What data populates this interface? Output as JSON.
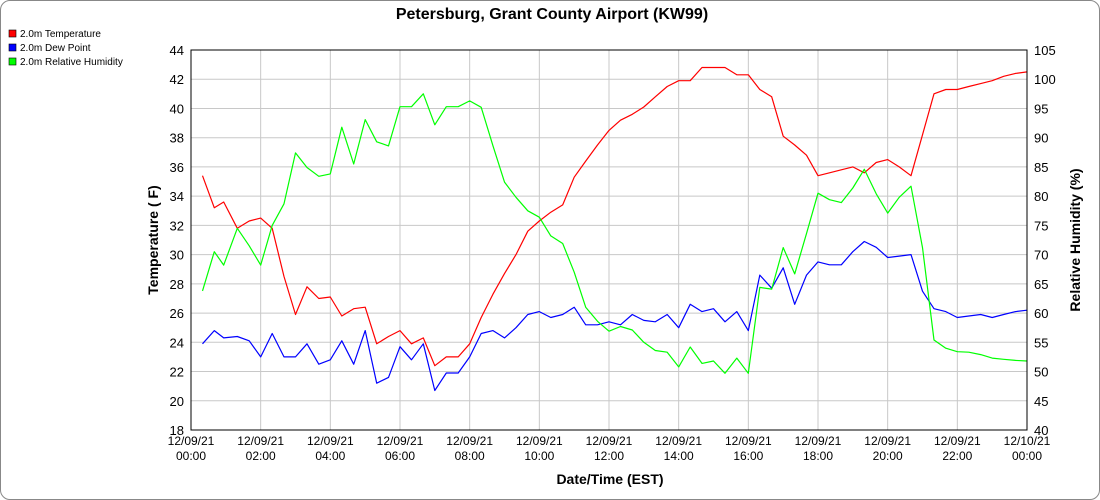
{
  "chart_data": {
    "type": "line",
    "title": "Petersburg, Grant County Airport (KW99)",
    "xlabel": "Date/Time (EST)",
    "ylabel_left": "Temperature ( F)",
    "ylabel_right": "Relative Humidity (%)",
    "ylim_left": [
      18,
      44
    ],
    "ylim_right": [
      40,
      105
    ],
    "left_ticks": [
      18,
      20,
      22,
      24,
      26,
      28,
      30,
      32,
      34,
      36,
      38,
      40,
      42,
      44
    ],
    "right_ticks": [
      40,
      45,
      50,
      55,
      60,
      65,
      70,
      75,
      80,
      85,
      90,
      95,
      100,
      105
    ],
    "x_hours": [
      0,
      24
    ],
    "x_ticks": [
      {
        "hour": 0,
        "line1": "12/09/21",
        "line2": "00:00"
      },
      {
        "hour": 2,
        "line1": "12/09/21",
        "line2": "02:00"
      },
      {
        "hour": 4,
        "line1": "12/09/21",
        "line2": "04:00"
      },
      {
        "hour": 6,
        "line1": "12/09/21",
        "line2": "06:00"
      },
      {
        "hour": 8,
        "line1": "12/09/21",
        "line2": "08:00"
      },
      {
        "hour": 10,
        "line1": "12/09/21",
        "line2": "10:00"
      },
      {
        "hour": 12,
        "line1": "12/09/21",
        "line2": "12:00"
      },
      {
        "hour": 14,
        "line1": "12/09/21",
        "line2": "14:00"
      },
      {
        "hour": 16,
        "line1": "12/09/21",
        "line2": "16:00"
      },
      {
        "hour": 18,
        "line1": "12/09/21",
        "line2": "18:00"
      },
      {
        "hour": 20,
        "line1": "12/09/21",
        "line2": "20:00"
      },
      {
        "hour": 22,
        "line1": "12/09/21",
        "line2": "22:00"
      },
      {
        "hour": 24,
        "line1": "12/10/21",
        "line2": "00:00"
      }
    ],
    "grid": true,
    "legend_position": "top-left",
    "series": [
      {
        "name": "2.0m Temperature",
        "color": "#ff0000",
        "axis": "left",
        "x": [
          0.33,
          0.67,
          0.94,
          1.33,
          1.67,
          2.0,
          2.33,
          2.67,
          3.0,
          3.33,
          3.67,
          4.0,
          4.33,
          4.67,
          5.0,
          5.33,
          5.67,
          6.0,
          6.33,
          6.67,
          7.0,
          7.33,
          7.67,
          8.0,
          8.33,
          8.67,
          9.0,
          9.33,
          9.67,
          10.0,
          10.33,
          10.67,
          11.0,
          11.33,
          11.67,
          12.0,
          12.33,
          12.67,
          13.0,
          13.33,
          13.67,
          14.0,
          14.33,
          14.67,
          15.0,
          15.33,
          15.67,
          16.0,
          16.33,
          16.67,
          17.0,
          17.33,
          17.67,
          18.0,
          18.33,
          18.67,
          19.0,
          19.33,
          19.67,
          20.0,
          20.33,
          20.67,
          21.0,
          21.33,
          21.67,
          22.0,
          22.33,
          22.67,
          23.0,
          23.33,
          23.67,
          24.0
        ],
        "y": [
          35.4,
          33.2,
          33.6,
          31.8,
          32.3,
          32.5,
          31.8,
          28.5,
          25.9,
          27.8,
          27.0,
          27.1,
          25.8,
          26.3,
          26.4,
          23.9,
          24.4,
          24.8,
          23.9,
          24.3,
          22.4,
          23.0,
          23.0,
          23.9,
          25.7,
          27.3,
          28.7,
          30.0,
          31.6,
          32.3,
          32.9,
          33.4,
          35.3,
          36.4,
          37.5,
          38.5,
          39.2,
          39.6,
          40.1,
          40.8,
          41.5,
          41.9,
          41.9,
          42.8,
          42.8,
          42.8,
          42.3,
          42.3,
          41.3,
          40.8,
          38.1,
          37.5,
          36.8,
          35.4,
          35.6,
          35.8,
          36.0,
          35.6,
          36.3,
          36.5,
          36.0,
          35.4,
          38.2,
          41.0,
          41.3,
          41.3,
          41.5,
          41.7,
          41.9,
          42.2,
          42.4,
          42.5
        ]
      },
      {
        "name": "2.0m Dew Point",
        "color": "#0000ff",
        "axis": "left",
        "x": [
          0.33,
          0.67,
          0.94,
          1.33,
          1.67,
          2.0,
          2.33,
          2.67,
          3.0,
          3.33,
          3.67,
          4.0,
          4.33,
          4.67,
          5.0,
          5.33,
          5.67,
          6.0,
          6.33,
          6.67,
          7.0,
          7.33,
          7.67,
          8.0,
          8.33,
          8.67,
          9.0,
          9.33,
          9.67,
          10.0,
          10.33,
          10.67,
          11.0,
          11.33,
          11.67,
          12.0,
          12.33,
          12.67,
          13.0,
          13.33,
          13.67,
          14.0,
          14.33,
          14.67,
          15.0,
          15.33,
          15.67,
          16.0,
          16.33,
          16.67,
          17.0,
          17.33,
          17.67,
          18.0,
          18.33,
          18.67,
          19.0,
          19.33,
          19.67,
          20.0,
          20.33,
          20.67,
          21.0,
          21.33,
          21.67,
          22.0,
          22.33,
          22.67,
          23.0,
          23.33,
          23.67,
          24.0
        ],
        "y": [
          23.9,
          24.8,
          24.3,
          24.4,
          24.1,
          23.0,
          24.6,
          23.0,
          23.0,
          23.9,
          22.5,
          22.8,
          24.1,
          22.5,
          24.8,
          21.2,
          21.6,
          23.7,
          22.8,
          23.9,
          20.7,
          21.9,
          21.9,
          23.0,
          24.6,
          24.8,
          24.3,
          25.0,
          25.9,
          26.1,
          25.7,
          25.9,
          26.4,
          25.2,
          25.2,
          25.4,
          25.2,
          25.9,
          25.5,
          25.4,
          25.9,
          25.0,
          26.6,
          26.1,
          26.3,
          25.4,
          26.1,
          24.8,
          28.6,
          27.7,
          29.1,
          26.6,
          28.6,
          29.5,
          29.3,
          29.3,
          30.2,
          30.9,
          30.5,
          29.8,
          29.9,
          30.0,
          27.5,
          26.3,
          26.1,
          25.7,
          25.8,
          25.9,
          25.7,
          25.9,
          26.1,
          26.2
        ]
      },
      {
        "name": "2.0m Relative Humidity",
        "color": "#00ff00",
        "axis": "right",
        "x": [
          0.33,
          0.67,
          0.94,
          1.33,
          1.67,
          2.0,
          2.33,
          2.67,
          3.0,
          3.33,
          3.67,
          4.0,
          4.33,
          4.67,
          5.0,
          5.33,
          5.67,
          6.0,
          6.33,
          6.67,
          7.0,
          7.33,
          7.67,
          8.0,
          8.33,
          8.67,
          9.0,
          9.33,
          9.67,
          10.0,
          10.33,
          10.67,
          11.0,
          11.33,
          11.67,
          12.0,
          12.33,
          12.67,
          13.0,
          13.33,
          13.67,
          14.0,
          14.33,
          14.67,
          15.0,
          15.33,
          15.67,
          16.0,
          16.33,
          16.67,
          17.0,
          17.33,
          17.67,
          18.0,
          18.33,
          18.67,
          19.0,
          19.33,
          19.67,
          20.0,
          20.33,
          20.67,
          21.0,
          21.33,
          21.67,
          22.0,
          22.33,
          22.67,
          23.0,
          23.33,
          23.67,
          24.0
        ],
        "y": [
          63.8,
          70.5,
          68.2,
          74.5,
          71.5,
          68.2,
          75.0,
          78.7,
          87.4,
          84.9,
          83.4,
          83.8,
          91.8,
          85.5,
          93.1,
          89.3,
          88.6,
          95.3,
          95.3,
          97.5,
          92.2,
          95.3,
          95.3,
          96.3,
          95.2,
          88.6,
          82.4,
          79.8,
          77.5,
          76.4,
          73.2,
          71.9,
          67.0,
          61.0,
          58.6,
          56.9,
          57.7,
          57.1,
          55.0,
          53.6,
          53.3,
          50.8,
          54.2,
          51.4,
          51.8,
          49.7,
          52.3,
          49.7,
          64.4,
          64.1,
          71.2,
          66.7,
          73.6,
          80.5,
          79.4,
          78.9,
          81.4,
          84.6,
          80.4,
          77.1,
          79.8,
          81.7,
          71.2,
          55.4,
          54.0,
          53.4,
          53.3,
          52.9,
          52.3,
          52.1,
          51.9,
          51.8
        ]
      }
    ]
  }
}
